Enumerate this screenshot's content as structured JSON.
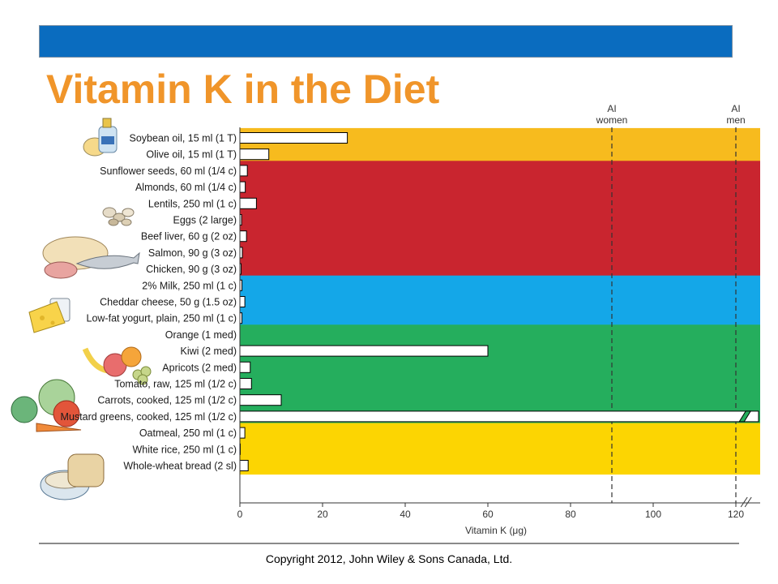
{
  "slide": {
    "title": "Vitamin K in the Diet",
    "copyright": "Copyright 2012, John Wiley & Sons Canada, Ltd."
  },
  "colors": {
    "top_bar": "#0a6cbf",
    "title": "#f0952a",
    "group_oils": "#f7bb1e",
    "group_protein": "#c9252f",
    "group_dairy": "#14a7e8",
    "group_fruits_vegetables": "#25ae5d",
    "group_grains": "#fcd502",
    "bar_fill": "#ffffff",
    "bar_stroke": "#000000"
  },
  "chart_data": {
    "type": "bar",
    "orientation": "horizontal",
    "xlabel": "Vitamin K (μg)",
    "ylabel": "",
    "xlim": [
      0,
      126
    ],
    "x_ticks": [
      0,
      20,
      40,
      60,
      80,
      100,
      120
    ],
    "x_axis_break_near": 122,
    "categories": [
      "Soybean oil, 15 ml (1 T)",
      "Olive oil, 15 ml (1 T)",
      "Sunflower seeds, 60 ml (1/4 c)",
      "Almonds, 60 ml (1/4 c)",
      "Lentils, 250 ml (1 c)",
      "Eggs (2 large)",
      "Beef liver, 60 g (2 oz)",
      "Salmon, 90 g (3 oz)",
      "Chicken, 90 g (3 oz)",
      "2% Milk, 250 ml (1 c)",
      "Cheddar cheese, 50 g (1.5 oz)",
      "Low-fat yogurt, plain, 250 ml (1 c)",
      "Orange (1 med)",
      "Kiwi (2 med)",
      "Apricots (2 med)",
      "Tomato, raw, 125 ml (1/2 c)",
      "Carrots, cooked, 125 ml (1/2 c)",
      "Mustard greens, cooked, 125 ml (1/2 c)",
      "Oatmeal, 250 ml (1 c)",
      "White rice, 250 ml (1 c)",
      "Whole-wheat bread (2 sl)"
    ],
    "values": [
      26,
      7,
      1.8,
      1.3,
      4,
      0.4,
      1.6,
      0.6,
      0.3,
      0.5,
      1.2,
      0.5,
      0,
      60,
      2.5,
      2.8,
      10,
      125,
      1.2,
      0.1,
      2
    ],
    "truncated_bars": [
      "Mustard greens, cooked, 125 ml (1/2 c)"
    ],
    "groups": [
      {
        "colorKey": "group_oils",
        "from": 0,
        "to": 1
      },
      {
        "colorKey": "group_protein",
        "from": 2,
        "to": 8
      },
      {
        "colorKey": "group_dairy",
        "from": 9,
        "to": 11
      },
      {
        "colorKey": "group_fruits_vegetables",
        "from": 12,
        "to": 17
      },
      {
        "colorKey": "group_grains",
        "from": 18,
        "to": 20
      }
    ],
    "reference_lines": [
      {
        "value": 90,
        "label_lines": [
          "AI",
          "women"
        ],
        "style": "dashed"
      },
      {
        "value": 120,
        "label_lines": [
          "AI",
          "men"
        ],
        "style": "dashed"
      }
    ]
  }
}
